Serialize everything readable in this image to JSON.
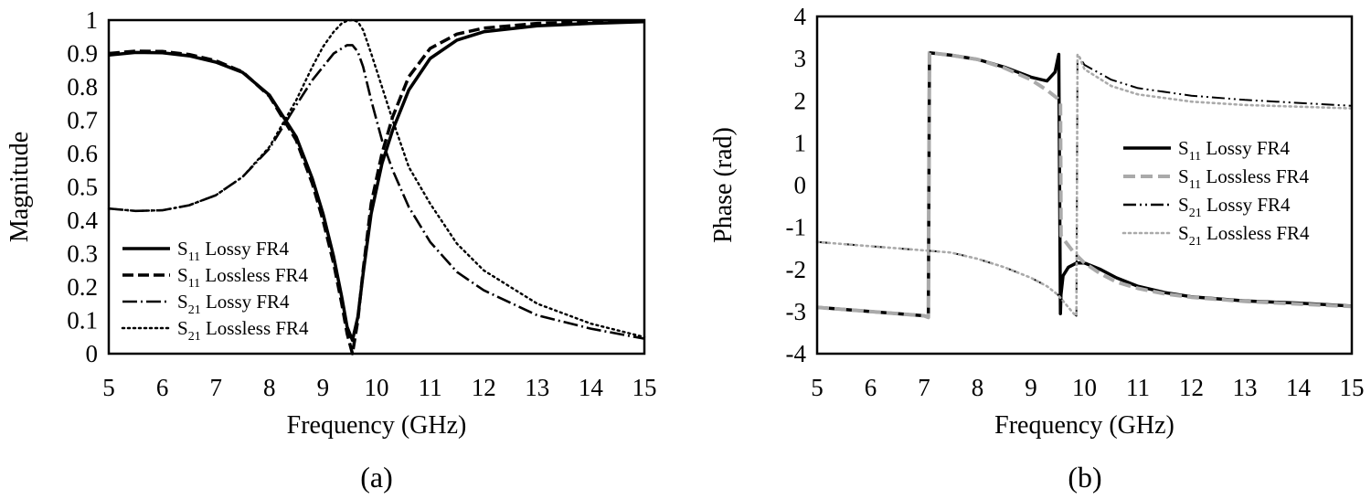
{
  "figure": {
    "panel_labels": [
      "(a)",
      "(b)"
    ]
  },
  "chart_data": [
    {
      "type": "line",
      "panel": "(a)",
      "title": "",
      "xlabel": "Frequency (GHz)",
      "ylabel": "Magnitude",
      "xlim": [
        5,
        15
      ],
      "ylim": [
        0,
        1
      ],
      "xticks": [
        "5",
        "6",
        "7",
        "8",
        "9",
        "10",
        "11",
        "12",
        "13",
        "14",
        "15"
      ],
      "yticks": [
        "0",
        "0.1",
        "0.2",
        "0.3",
        "0.4",
        "0.5",
        "0.6",
        "0.7",
        "0.8",
        "0.9",
        "1"
      ],
      "grid": false,
      "legend_position": "bottom-left",
      "series": [
        {
          "name": "S11 Lossy FR4",
          "label_main": "S",
          "label_sub": "11",
          "label_rest": " Lossy FR4",
          "color": "#000000",
          "style": "solid",
          "x": [
            5,
            5.5,
            6,
            6.5,
            7,
            7.5,
            8,
            8.5,
            8.8,
            9,
            9.2,
            9.35,
            9.45,
            9.55,
            9.65,
            9.75,
            9.9,
            10.1,
            10.3,
            10.6,
            11,
            11.5,
            12,
            13,
            14,
            15
          ],
          "y": [
            0.895,
            0.903,
            0.902,
            0.893,
            0.874,
            0.843,
            0.775,
            0.65,
            0.525,
            0.42,
            0.29,
            0.17,
            0.08,
            0.04,
            0.11,
            0.24,
            0.42,
            0.57,
            0.67,
            0.79,
            0.885,
            0.94,
            0.965,
            0.983,
            0.99,
            0.995
          ]
        },
        {
          "name": "S11 Lossless FR4",
          "label_main": "S",
          "label_sub": "11",
          "label_rest": " Lossless FR4",
          "color": "#000000",
          "style": "dashed",
          "x": [
            5,
            5.5,
            6,
            6.5,
            7,
            7.5,
            8,
            8.5,
            8.8,
            9,
            9.2,
            9.35,
            9.45,
            9.55,
            9.65,
            9.75,
            9.9,
            10.1,
            10.3,
            10.6,
            11,
            11.5,
            12,
            13,
            14,
            15
          ],
          "y": [
            0.9,
            0.907,
            0.906,
            0.897,
            0.878,
            0.845,
            0.772,
            0.64,
            0.51,
            0.4,
            0.27,
            0.15,
            0.06,
            0.0,
            0.1,
            0.25,
            0.45,
            0.6,
            0.71,
            0.83,
            0.915,
            0.958,
            0.976,
            0.99,
            0.995,
            0.998
          ]
        },
        {
          "name": "S21 Lossy FR4",
          "label_main": "S",
          "label_sub": "21",
          "label_rest": " Lossy FR4",
          "color": "#000000",
          "style": "dashdot",
          "x": [
            5,
            5.5,
            6,
            6.5,
            7,
            7.5,
            8,
            8.5,
            8.8,
            9,
            9.2,
            9.35,
            9.45,
            9.55,
            9.65,
            9.75,
            9.9,
            10.1,
            10.3,
            10.6,
            11,
            11.5,
            12,
            13,
            14,
            15
          ],
          "y": [
            0.435,
            0.428,
            0.43,
            0.445,
            0.475,
            0.53,
            0.615,
            0.745,
            0.82,
            0.86,
            0.9,
            0.915,
            0.925,
            0.925,
            0.905,
            0.86,
            0.76,
            0.64,
            0.55,
            0.44,
            0.335,
            0.245,
            0.19,
            0.115,
            0.075,
            0.045
          ]
        },
        {
          "name": "S21 Lossless FR4",
          "label_main": "S",
          "label_sub": "21",
          "label_rest": " Lossless FR4",
          "color": "#000000",
          "style": "dotted",
          "x": [
            5,
            5.5,
            6,
            6.5,
            7,
            7.5,
            8,
            8.5,
            8.8,
            9,
            9.2,
            9.35,
            9.45,
            9.55,
            9.65,
            9.75,
            9.9,
            10.1,
            10.3,
            10.6,
            11,
            11.5,
            12,
            13,
            14,
            15
          ],
          "y": [
            0.435,
            0.428,
            0.43,
            0.445,
            0.475,
            0.53,
            0.62,
            0.76,
            0.86,
            0.92,
            0.965,
            0.99,
            0.998,
            1.0,
            0.995,
            0.97,
            0.9,
            0.8,
            0.7,
            0.56,
            0.45,
            0.33,
            0.25,
            0.15,
            0.09,
            0.05
          ]
        }
      ]
    },
    {
      "type": "line",
      "panel": "(b)",
      "title": "",
      "xlabel": "Frequency (GHz)",
      "ylabel": "Phase (rad)",
      "xlim": [
        5,
        15
      ],
      "ylim": [
        -4,
        4
      ],
      "xticks": [
        "5",
        "6",
        "7",
        "8",
        "9",
        "10",
        "11",
        "12",
        "13",
        "14",
        "15"
      ],
      "yticks": [
        "-4",
        "-3",
        "-2",
        "-1",
        "0",
        "1",
        "2",
        "3",
        "4"
      ],
      "grid": false,
      "legend_position": "right",
      "series": [
        {
          "name": "S11 Lossy FR4",
          "label_main": "S",
          "label_sub": "11",
          "label_rest": " Lossy FR4",
          "color": "#000000",
          "style": "solid-thick",
          "x": [
            5,
            6,
            7,
            7.08,
            7.1,
            7.5,
            8,
            8.5,
            9,
            9.3,
            9.45,
            9.52,
            9.55,
            9.56,
            9.6,
            9.7,
            9.85,
            10,
            10.3,
            10.6,
            11,
            11.5,
            12,
            13,
            14,
            15
          ],
          "y": [
            -2.9,
            -3.0,
            -3.1,
            -3.14,
            3.14,
            3.08,
            2.98,
            2.8,
            2.56,
            2.47,
            2.68,
            3.1,
            -3.05,
            -2.6,
            -2.15,
            -1.95,
            -1.85,
            -1.85,
            -2.0,
            -2.2,
            -2.4,
            -2.55,
            -2.65,
            -2.75,
            -2.8,
            -2.87
          ]
        },
        {
          "name": "S11 Lossless FR4",
          "label_main": "S",
          "label_sub": "11",
          "label_rest": " Lossless FR4",
          "color": "#aaaaaa",
          "style": "dashed-gray",
          "x": [
            5,
            6,
            7,
            7.08,
            7.1,
            7.5,
            8,
            8.5,
            9,
            9.3,
            9.5,
            9.55,
            9.56,
            9.65,
            9.8,
            10,
            10.3,
            10.6,
            11,
            11.5,
            12,
            13,
            14,
            15
          ],
          "y": [
            -2.9,
            -3.0,
            -3.1,
            -3.14,
            3.14,
            3.08,
            2.98,
            2.78,
            2.5,
            2.25,
            2.05,
            1.95,
            -1.2,
            -1.35,
            -1.6,
            -1.85,
            -2.1,
            -2.3,
            -2.45,
            -2.58,
            -2.66,
            -2.76,
            -2.82,
            -2.88
          ]
        },
        {
          "name": "S21 Lossy FR4",
          "label_main": "S",
          "label_sub": "21",
          "label_rest": " Lossy FR4",
          "color": "#000000",
          "style": "dashdot-thin",
          "x": [
            5,
            6,
            7,
            7.5,
            8,
            8.5,
            9,
            9.3,
            9.5,
            9.6,
            9.7,
            9.8,
            9.85,
            9.87,
            9.9,
            10,
            10.5,
            11,
            12,
            13,
            14,
            15
          ],
          "y": [
            -1.35,
            -1.45,
            -1.55,
            -1.6,
            -1.75,
            -1.95,
            -2.2,
            -2.4,
            -2.6,
            -2.75,
            -2.9,
            -3.05,
            -3.1,
            3.1,
            3.05,
            2.85,
            2.5,
            2.3,
            2.12,
            2.02,
            1.95,
            1.88
          ]
        },
        {
          "name": "S21 Lossless FR4",
          "label_main": "S",
          "label_sub": "21",
          "label_rest": " Lossless FR4",
          "color": "#aaaaaa",
          "style": "dotted-gray",
          "x": [
            5,
            6,
            7,
            7.5,
            8,
            8.5,
            9,
            9.3,
            9.5,
            9.6,
            9.7,
            9.8,
            9.85,
            9.87,
            9.9,
            10,
            10.5,
            11,
            12,
            13,
            14,
            15
          ],
          "y": [
            -1.35,
            -1.45,
            -1.55,
            -1.6,
            -1.75,
            -1.95,
            -2.2,
            -2.4,
            -2.6,
            -2.75,
            -2.9,
            -3.05,
            -3.1,
            3.1,
            3.05,
            2.75,
            2.35,
            2.15,
            1.98,
            1.9,
            1.86,
            1.82
          ]
        }
      ]
    }
  ]
}
